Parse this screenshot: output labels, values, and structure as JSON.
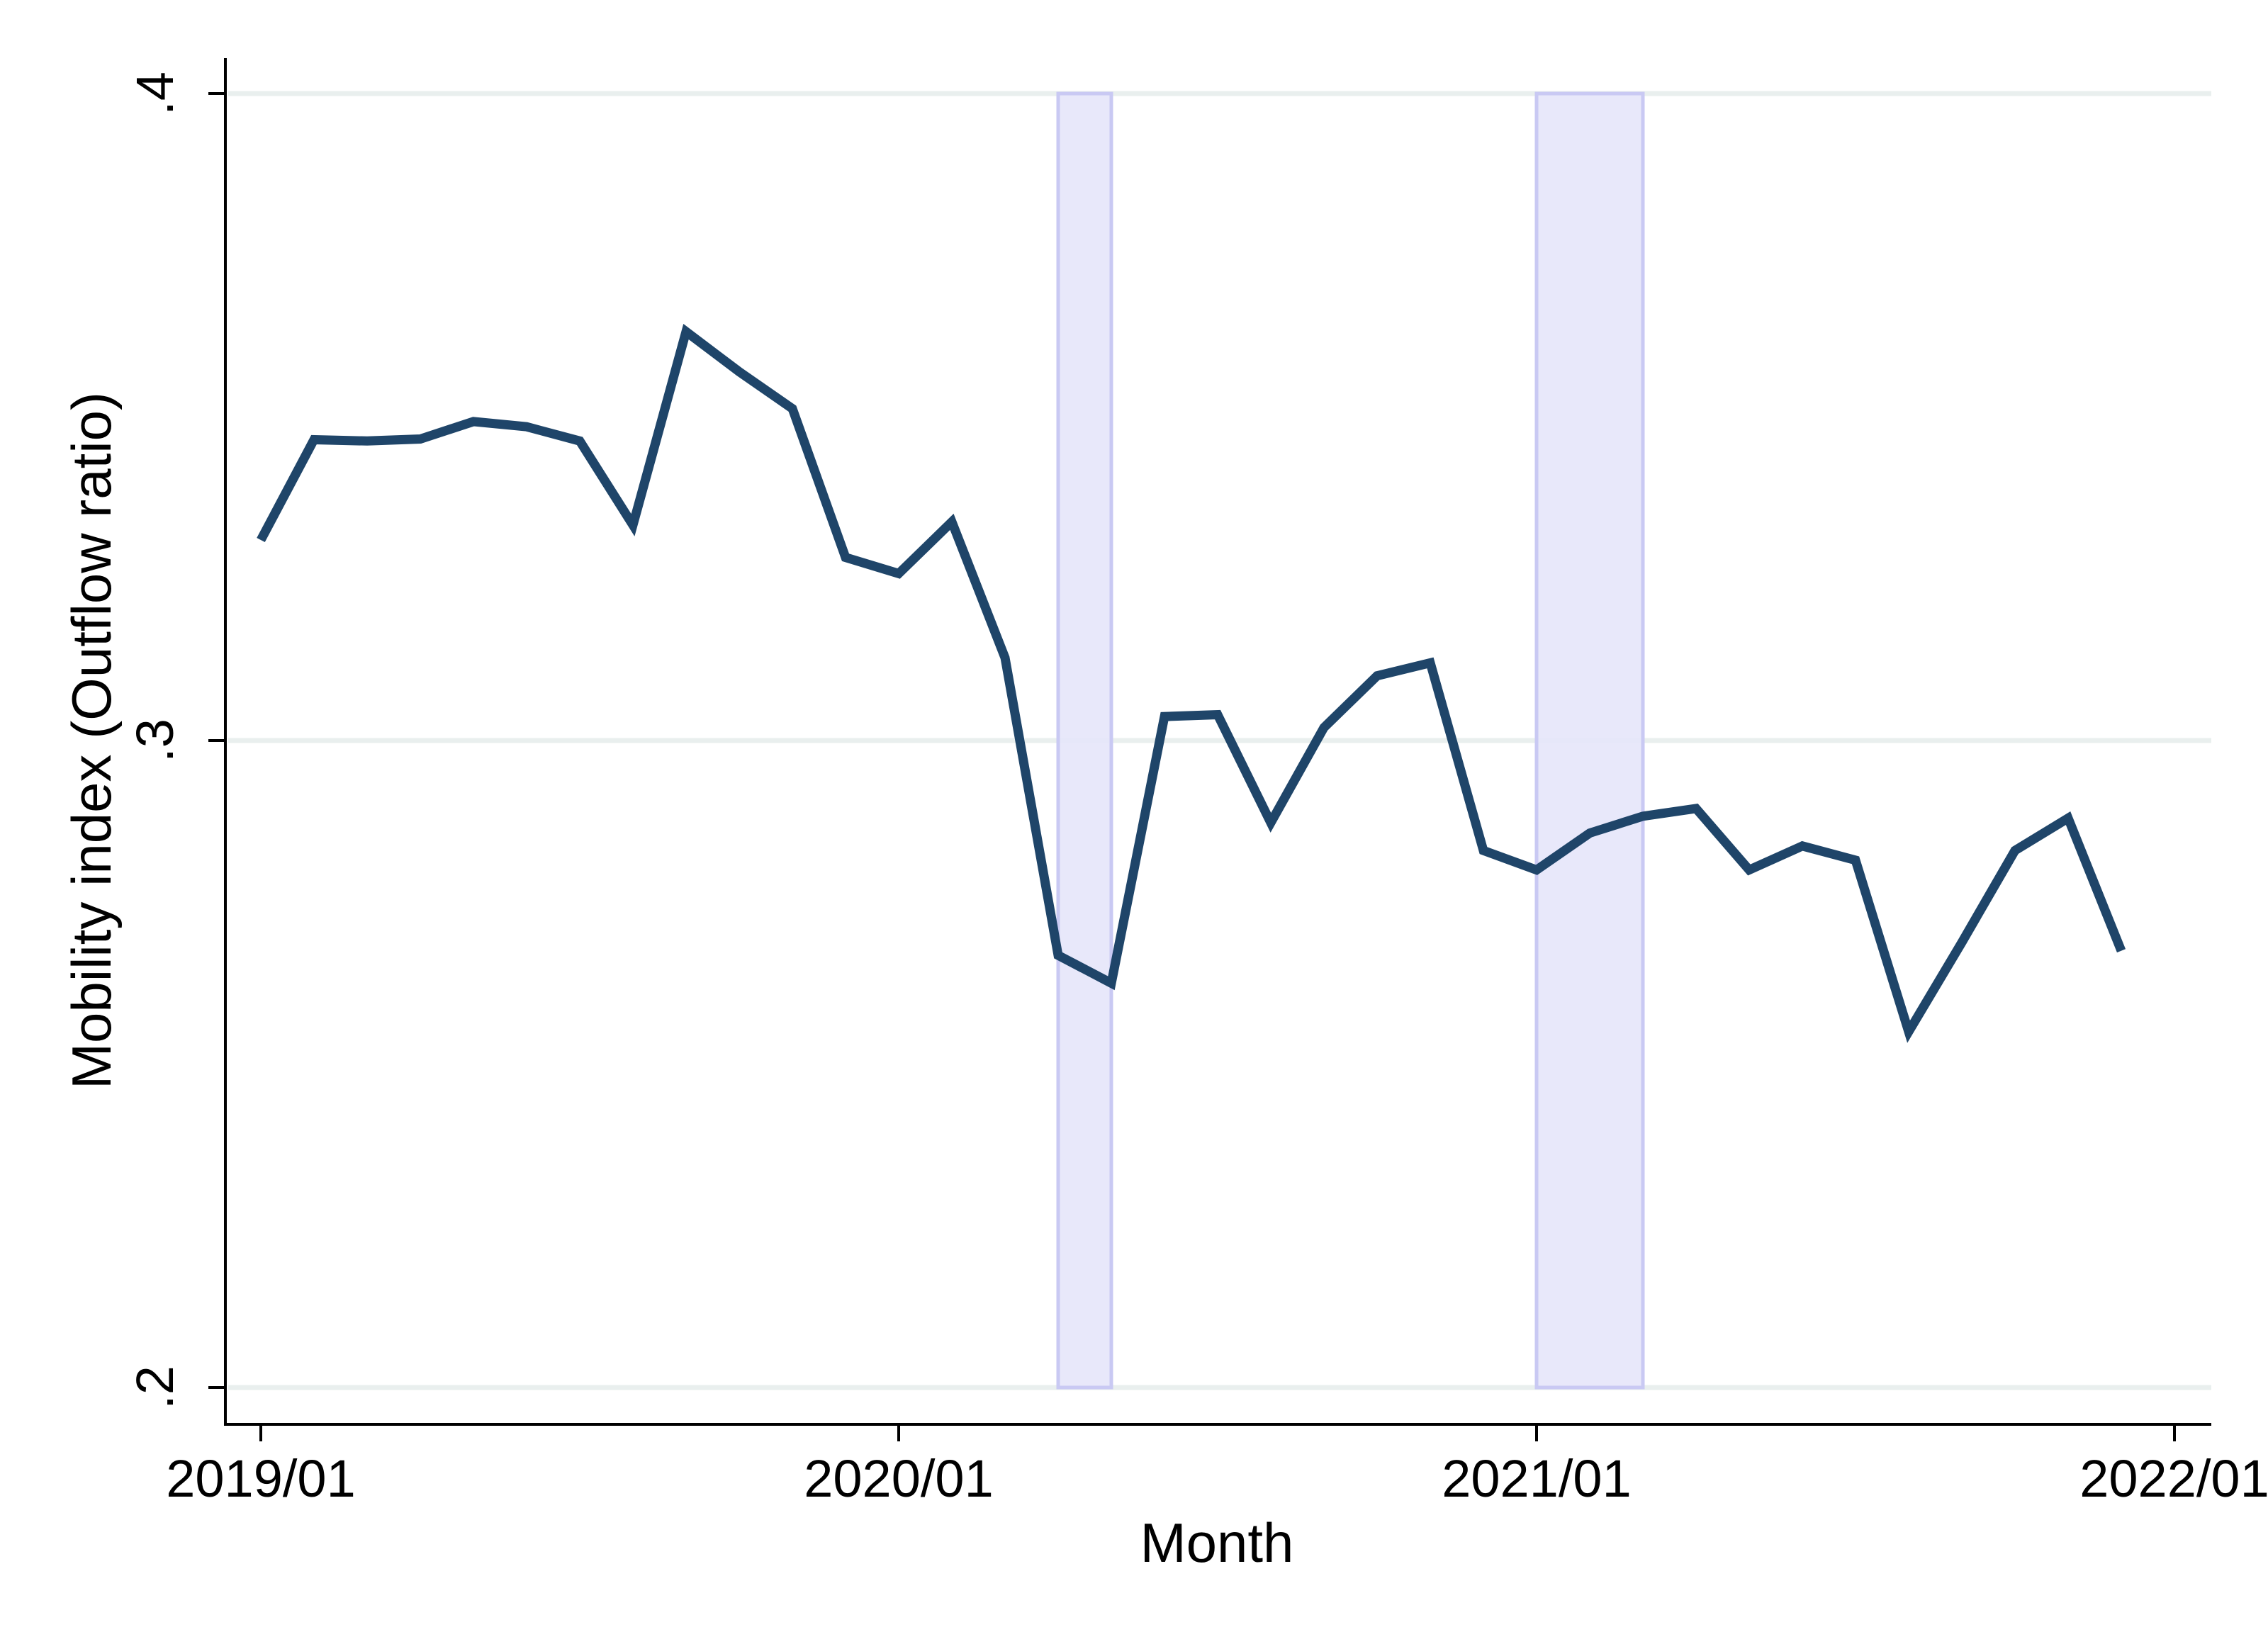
{
  "chart_data": {
    "type": "line",
    "title": "",
    "xlabel": "Month",
    "ylabel": "Mobility index (Outflow ratio)",
    "xlim": [
      "2019/01",
      "2022/01"
    ],
    "ylim": [
      0.2,
      0.4
    ],
    "x_ticks": [
      {
        "date": "2019/01",
        "label": "2019/01"
      },
      {
        "date": "2020/01",
        "label": "2020/01"
      },
      {
        "date": "2021/01",
        "label": "2021/01"
      },
      {
        "date": "2022/01",
        "label": "2022/01"
      }
    ],
    "y_ticks": [
      {
        "value": 0.2,
        "label": ".2"
      },
      {
        "value": 0.3,
        "label": ".3"
      },
      {
        "value": 0.4,
        "label": ".4"
      }
    ],
    "grid": true,
    "legend": "none",
    "shaded_periods": [
      {
        "start": "2020/04",
        "end": "2020/05"
      },
      {
        "start": "2021/01",
        "end": "2021/03"
      }
    ],
    "series": [
      {
        "color": "#1f4569",
        "points": [
          {
            "x": "2019/01",
            "y": 0.331
          },
          {
            "x": "2019/02",
            "y": 0.3465
          },
          {
            "x": "2019/03",
            "y": 0.3463
          },
          {
            "x": "2019/04",
            "y": 0.3466
          },
          {
            "x": "2019/05",
            "y": 0.3493
          },
          {
            "x": "2019/06",
            "y": 0.3485
          },
          {
            "x": "2019/07",
            "y": 0.3463
          },
          {
            "x": "2019/08",
            "y": 0.3333
          },
          {
            "x": "2019/09",
            "y": 0.3632
          },
          {
            "x": "2019/10",
            "y": 0.357
          },
          {
            "x": "2019/11",
            "y": 0.3513
          },
          {
            "x": "2019/12",
            "y": 0.3283
          },
          {
            "x": "2020/01",
            "y": 0.3258
          },
          {
            "x": "2020/02",
            "y": 0.3338
          },
          {
            "x": "2020/03",
            "y": 0.3128
          },
          {
            "x": "2020/04",
            "y": 0.2668
          },
          {
            "x": "2020/05",
            "y": 0.2625
          },
          {
            "x": "2020/06",
            "y": 0.3037
          },
          {
            "x": "2020/07",
            "y": 0.304
          },
          {
            "x": "2020/08",
            "y": 0.2873
          },
          {
            "x": "2020/09",
            "y": 0.302
          },
          {
            "x": "2020/10",
            "y": 0.31
          },
          {
            "x": "2020/11",
            "y": 0.312
          },
          {
            "x": "2020/12",
            "y": 0.283
          },
          {
            "x": "2021/01",
            "y": 0.28
          },
          {
            "x": "2021/02",
            "y": 0.2857
          },
          {
            "x": "2021/03",
            "y": 0.2883
          },
          {
            "x": "2021/04",
            "y": 0.2895
          },
          {
            "x": "2021/05",
            "y": 0.28
          },
          {
            "x": "2021/06",
            "y": 0.2837
          },
          {
            "x": "2021/07",
            "y": 0.2815
          },
          {
            "x": "2021/08",
            "y": 0.255
          },
          {
            "x": "2021/09",
            "y": 0.2688
          },
          {
            "x": "2021/10",
            "y": 0.283
          },
          {
            "x": "2021/11",
            "y": 0.288
          },
          {
            "x": "2021/12",
            "y": 0.2675
          }
        ]
      }
    ]
  }
}
